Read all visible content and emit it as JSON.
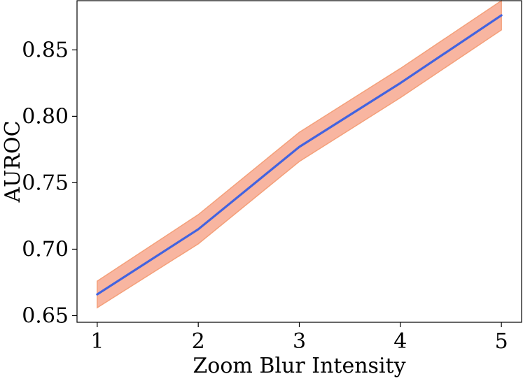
{
  "chart_data": {
    "type": "line",
    "title": "",
    "xlabel": "Zoom Blur Intensity",
    "ylabel": "AUROC",
    "x": [
      1,
      2,
      3,
      4,
      5
    ],
    "xticks": [
      "1",
      "2",
      "3",
      "4",
      "5"
    ],
    "yticks": [
      "0.65",
      "0.70",
      "0.75",
      "0.80",
      "0.85"
    ],
    "ytick_values": [
      0.65,
      0.7,
      0.75,
      0.8,
      0.85
    ],
    "xlim": [
      0.8,
      5.2
    ],
    "ylim": [
      0.645,
      0.887
    ],
    "grid": false,
    "series": [
      {
        "values": [
          0.666,
          0.715,
          0.777,
          0.825,
          0.876
        ],
        "lower": [
          0.656,
          0.704,
          0.766,
          0.814,
          0.865
        ],
        "upper": [
          0.676,
          0.726,
          0.788,
          0.836,
          0.887
        ],
        "line_color": "#4263e0",
        "band_color": "#f8b5a0",
        "band_edge_color": "#f4a07a"
      }
    ]
  }
}
